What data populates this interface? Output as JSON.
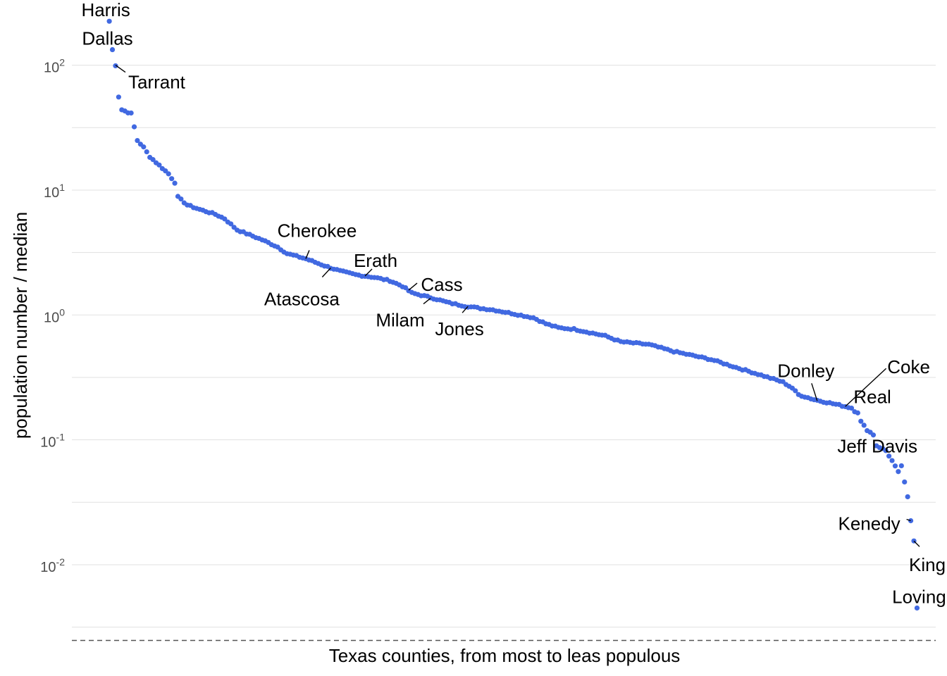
{
  "chart_data": {
    "type": "scatter",
    "xlabel": "Texas counties, from most to leas populous",
    "ylabel": "population number / median",
    "y_scale": "log10",
    "y_ticks": [
      {
        "value": 100,
        "base": "10",
        "exp": "2"
      },
      {
        "value": 10,
        "base": "10",
        "exp": "1"
      },
      {
        "value": 1,
        "base": "10",
        "exp": "0"
      },
      {
        "value": 0.1,
        "base": "10",
        "exp": "-1"
      },
      {
        "value": 0.01,
        "base": "10",
        "exp": "-2"
      }
    ],
    "ylim": [
      0.0028,
      300
    ],
    "xlim": [
      -11,
      266
    ],
    "grid": true,
    "point_color": "#4169E1",
    "reference_line": {
      "y": 0.0025,
      "style": "dashed"
    },
    "curve_anchors": [
      [
        1,
        225
      ],
      [
        2,
        133
      ],
      [
        3,
        100
      ],
      [
        4,
        56
      ],
      [
        5,
        44
      ],
      [
        8,
        41
      ],
      [
        10,
        25
      ],
      [
        12,
        22
      ],
      [
        14,
        18.5
      ],
      [
        18,
        15
      ],
      [
        20,
        13.5
      ],
      [
        22,
        11.5
      ],
      [
        23,
        8.8
      ],
      [
        26,
        7.6
      ],
      [
        30,
        7.0
      ],
      [
        35,
        6.4
      ],
      [
        38,
        5.9
      ],
      [
        42,
        4.8
      ],
      [
        50,
        4.0
      ],
      [
        55,
        3.5
      ],
      [
        58,
        3.1
      ],
      [
        64,
        2.82
      ],
      [
        70,
        2.48
      ],
      [
        75,
        2.25
      ],
      [
        80,
        2.1
      ],
      [
        86,
        2.0
      ],
      [
        91,
        1.88
      ],
      [
        95,
        1.7
      ],
      [
        98,
        1.5
      ],
      [
        104,
        1.38
      ],
      [
        110,
        1.25
      ],
      [
        115,
        1.18
      ],
      [
        120,
        1.13
      ],
      [
        124,
        1.1
      ],
      [
        130,
        1.03
      ],
      [
        137,
        0.95
      ],
      [
        141,
        0.85
      ],
      [
        145,
        0.79
      ],
      [
        150,
        0.77
      ],
      [
        160,
        0.68
      ],
      [
        165,
        0.61
      ],
      [
        174,
        0.58
      ],
      [
        182,
        0.51
      ],
      [
        194,
        0.44
      ],
      [
        202,
        0.38
      ],
      [
        210,
        0.33
      ],
      [
        217,
        0.29
      ],
      [
        220,
        0.26
      ],
      [
        222,
        0.23
      ],
      [
        227,
        0.21
      ],
      [
        235,
        0.19
      ],
      [
        239,
        0.18
      ],
      [
        240,
        0.17
      ],
      [
        241,
        0.166
      ],
      [
        242,
        0.14
      ],
      [
        244,
        0.12
      ],
      [
        246,
        0.11
      ],
      [
        247,
        0.09
      ],
      [
        250,
        0.082
      ],
      [
        252,
        0.068
      ],
      [
        254,
        0.055
      ],
      [
        256,
        0.046
      ],
      [
        257,
        0.035
      ],
      [
        258,
        0.023
      ],
      [
        259,
        0.016
      ],
      [
        260,
        0.0045
      ]
    ],
    "labels": [
      {
        "name": "Harris",
        "x": 1,
        "y": 225
      },
      {
        "name": "Dallas",
        "x": 2,
        "y": 133
      },
      {
        "name": "Tarrant",
        "x": 3,
        "y": 100
      },
      {
        "name": "Cherokee",
        "x": 64,
        "y": 2.82
      },
      {
        "name": "Atascosa",
        "x": 72,
        "y": 2.38
      },
      {
        "name": "Erath",
        "x": 83,
        "y": 2.05
      },
      {
        "name": "Cass",
        "x": 97,
        "y": 1.58
      },
      {
        "name": "Milam",
        "x": 104,
        "y": 1.36
      },
      {
        "name": "Jones",
        "x": 116,
        "y": 1.17
      },
      {
        "name": "Donley",
        "x": 228,
        "y": 0.205
      },
      {
        "name": "Coke",
        "x": 237,
        "y": 0.185
      },
      {
        "name": "Real",
        "x": 238,
        "y": 0.182
      },
      {
        "name": "Jeff Davis",
        "x": 243,
        "y": 0.128
      },
      {
        "name": "Kenedy",
        "x": 258,
        "y": 0.0225
      },
      {
        "name": "King",
        "x": 259,
        "y": 0.0155
      },
      {
        "name": "Loving",
        "x": 260,
        "y": 0.0045
      }
    ]
  }
}
